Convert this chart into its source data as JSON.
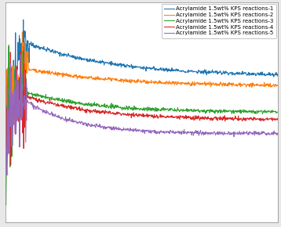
{
  "legend_labels": [
    "Acrylamide 1.5wt% KPS reactions-1",
    "Acrylamide 1.5wt% KPS reactions-2",
    "Acrylamide 1.5wt% KPS reactions-3",
    "Acrylamide 1.5wt% KPS reactions-4",
    "Acrylamide 1.5wt% KPS reactions-5"
  ],
  "colors": [
    "#1f77b4",
    "#ff7f0e",
    "#2ca02c",
    "#d62728",
    "#9467bd"
  ],
  "n_points": 800,
  "background_color": "#e8e8e8",
  "plot_bg": "#ffffff",
  "legend_fontsize": 5.0,
  "line_width": 0.75,
  "xlim": [
    0,
    800
  ],
  "ylim_min": -0.15,
  "ylim_max": 0.52
}
